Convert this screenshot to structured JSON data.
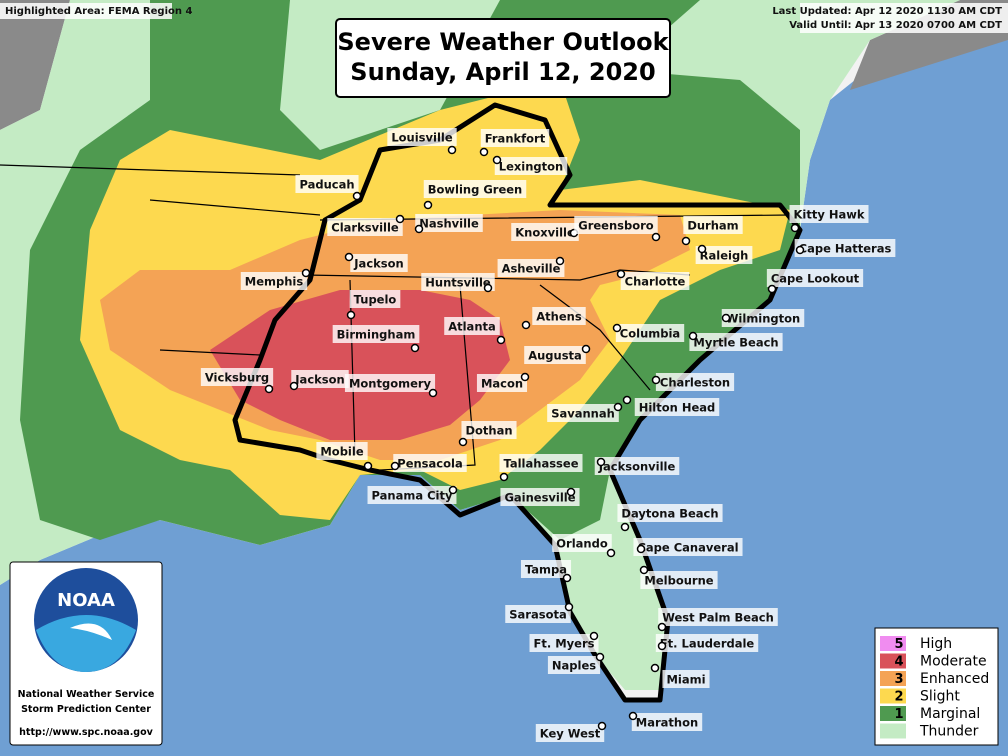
{
  "header": {
    "highlighted": "Highlighted Area: FEMA Region 4",
    "last_updated": "Last Updated: Apr 12 2020 1130 AM CDT",
    "valid_until": "Valid Until: Apr 13 2020 0700 AM CDT"
  },
  "title": {
    "line1": "Severe Weather Outlook",
    "line2": "Sunday, April 12, 2020"
  },
  "logo": {
    "badge": "NOAA",
    "line1": "National Weather Service",
    "line2": "Storm Prediction Center",
    "url": "http://www.spc.noaa.gov"
  },
  "legend": [
    {
      "number": "5",
      "label": "High",
      "color": "#f08cf0"
    },
    {
      "number": "4",
      "label": "Moderate",
      "color": "#d9525a"
    },
    {
      "number": "3",
      "label": "Enhanced",
      "color": "#f4a355"
    },
    {
      "number": "2",
      "label": "Slight",
      "color": "#fdd94f"
    },
    {
      "number": "1",
      "label": "Marginal",
      "color": "#4f9a50"
    },
    {
      "label": "Thunder",
      "color": "#c4ebc4"
    }
  ],
  "cities": [
    "Louisville",
    "Frankfort",
    "Lexington",
    "Paducah",
    "Bowling Green",
    "Clarksville",
    "Nashville",
    "Knoxville",
    "Greensboro",
    "Durham",
    "Kitty Hawk",
    "Cape Hatteras",
    "Raleigh",
    "Jackson",
    "Asheville",
    "Memphis",
    "Huntsville",
    "Charlotte",
    "Cape Lookout",
    "Tupelo",
    "Wilmington",
    "Athens",
    "Birmingham",
    "Atlanta",
    "Columbia",
    "Myrtle Beach",
    "Augusta",
    "Vicksburg",
    "Jackson",
    "Montgomery",
    "Macon",
    "Charleston",
    "Savannah",
    "Hilton Head",
    "Dothan",
    "Mobile",
    "Pensacola",
    "Tallahassee",
    "Jacksonville",
    "Panama City",
    "Gainesville",
    "Daytona Beach",
    "Orlando",
    "Cape Canaveral",
    "Tampa",
    "Melbourne",
    "Sarasota",
    "West Palm Beach",
    "Ft. Myers",
    "Ft. Lauderdale",
    "Naples",
    "Miami",
    "Marathon",
    "Key West"
  ]
}
